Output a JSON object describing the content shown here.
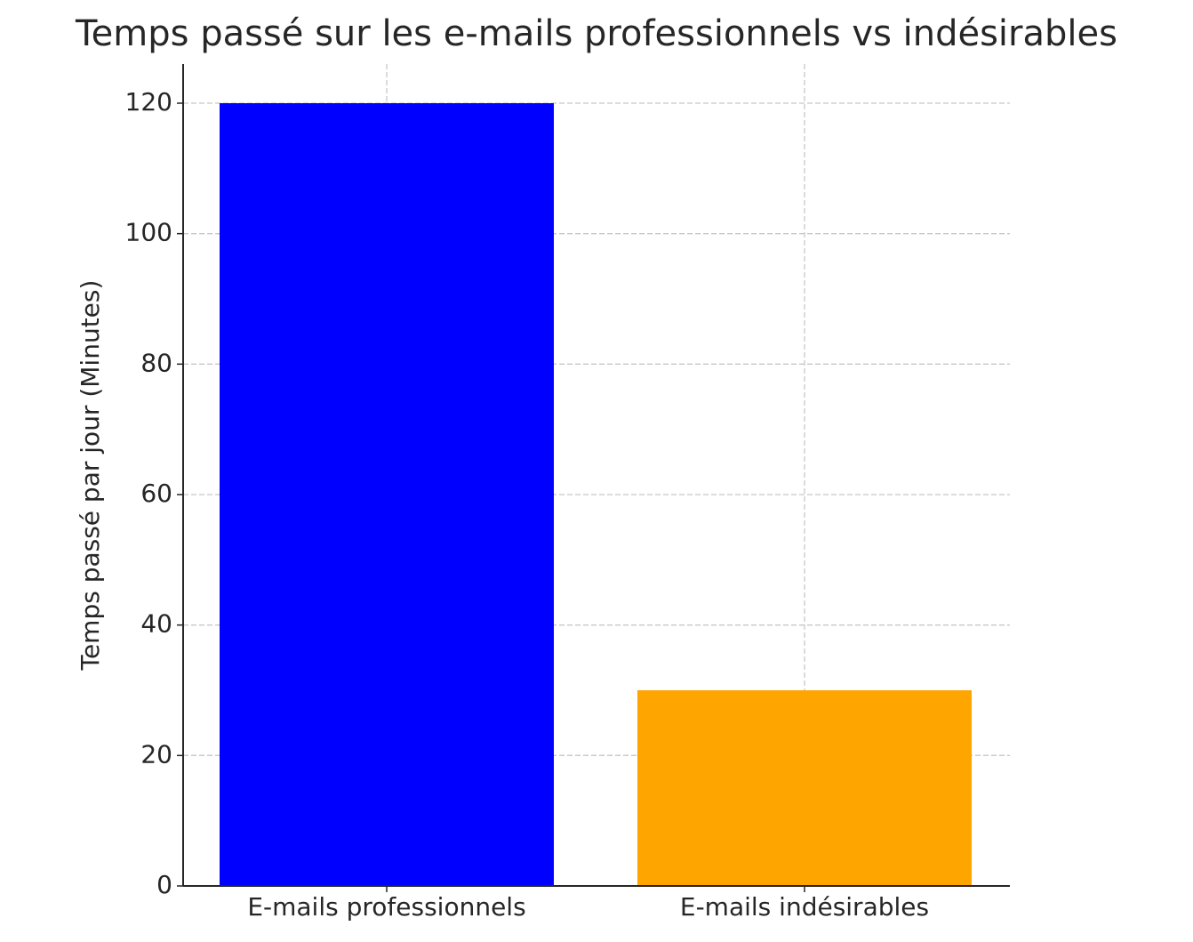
{
  "chart_data": {
    "type": "bar",
    "title": "Temps passé sur les e-mails professionnels vs indésirables",
    "y_label": "Temps passé par jour (Minutes)",
    "categories": [
      "E-mails professionnels",
      "E-mails indésirables"
    ],
    "values": [
      120,
      30
    ],
    "colors": [
      "#0000ff",
      "#ffa500"
    ],
    "ylim": [
      0,
      126
    ],
    "yticks": [
      0,
      20,
      40,
      60,
      80,
      100,
      120
    ],
    "grid": true
  }
}
